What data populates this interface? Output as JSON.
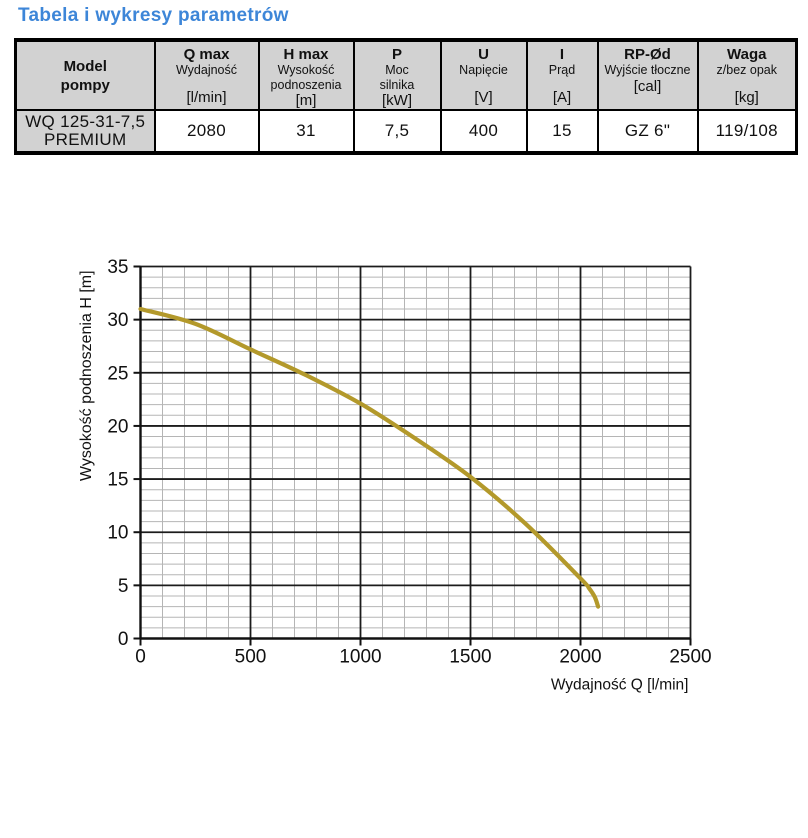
{
  "title": "Tabela i wykresy parametrów",
  "colors": {
    "title_blue": "#3d86d8",
    "table_header_gray": "#d2d2d2",
    "curve_gold": "#b3992b",
    "grid_minor": "#b5b5b5",
    "grid_major": "#1c1c1c",
    "text_black": "#111111"
  },
  "table": {
    "columns": [
      {
        "label": "Model\npompy",
        "sub": "",
        "unit": ""
      },
      {
        "label": "Q max",
        "sub": "Wydajność",
        "unit": "[l/min]"
      },
      {
        "label": "H max",
        "sub": "Wysokość\npodnoszenia",
        "unit": "[m]"
      },
      {
        "label": "P",
        "sub": "Moc\nsilnika",
        "unit": "[kW]"
      },
      {
        "label": "U",
        "sub": "Napięcie",
        "unit": "[V]"
      },
      {
        "label": "I",
        "sub": "Prąd",
        "unit": "[A]"
      },
      {
        "label": "RP-Ød",
        "sub": "Wyjście tłoczne",
        "unit": "[cal]"
      },
      {
        "label": "Waga",
        "sub": "z/bez opak",
        "unit": "[kg]"
      }
    ],
    "row": {
      "model": "WQ 125-31-7,5\nPREMIUM",
      "values": [
        "2080",
        "31",
        "7,5",
        "400",
        "15",
        "GZ 6\"",
        "119/108"
      ]
    }
  },
  "chart_data": {
    "type": "line",
    "title": "",
    "xlabel": "Wydajność Q [l/min]",
    "ylabel": "Wysokość podnoszenia H [m]",
    "xlim": [
      0,
      2500
    ],
    "ylim": [
      0,
      35
    ],
    "x_ticks": [
      0,
      500,
      1000,
      1500,
      2000,
      2500
    ],
    "y_ticks": [
      0,
      5,
      10,
      15,
      20,
      25,
      30,
      35
    ],
    "x_minor_step": 100,
    "y_minor_step": 1,
    "grid": true,
    "legend": false,
    "series": [
      {
        "name": "WQ 125-31-7,5 PREMIUM",
        "color": "#b3992b",
        "x": [
          0,
          250,
          500,
          750,
          1000,
          1250,
          1500,
          1750,
          2000,
          2040,
          2065,
          2080
        ],
        "y": [
          31.0,
          29.6,
          27.2,
          24.8,
          22.1,
          18.8,
          15.2,
          10.8,
          5.65,
          4.7,
          3.9,
          3.0
        ]
      }
    ]
  }
}
